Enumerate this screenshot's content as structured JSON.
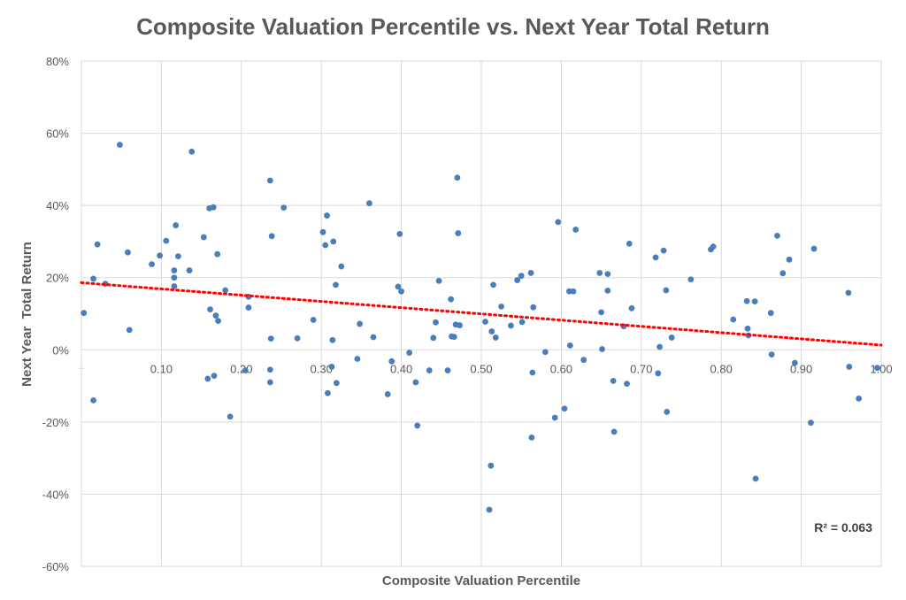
{
  "chart_data": {
    "type": "scatter",
    "title": "Composite Valuation Percentile vs. Next Year Total Return",
    "xlabel": "Composite Valuation Percentile",
    "ylabel": "Next Year  Total Return",
    "xlim": [
      0,
      1.0
    ],
    "ylim": [
      -0.6,
      0.8
    ],
    "x_ticks": [
      0.1,
      0.2,
      0.3,
      0.4,
      0.5,
      0.6,
      0.7,
      0.8,
      0.9,
      1.0
    ],
    "x_tick_labels": [
      "0.10",
      "0.20",
      "0.30",
      "0.40",
      "0.50",
      "0.60",
      "0.70",
      "0.80",
      "0.90",
      "1.00"
    ],
    "y_ticks": [
      -0.6,
      -0.4,
      -0.2,
      0,
      0.2,
      0.4,
      0.6,
      0.8
    ],
    "y_tick_labels": [
      "-60%",
      "-40%",
      "-20%",
      "0%",
      "20%",
      "40%",
      "60%",
      "80%"
    ],
    "gridlines": true,
    "trendline": {
      "type": "linear",
      "x": [
        0.0,
        1.0
      ],
      "y": [
        0.186,
        0.013
      ],
      "color": "#ff0000",
      "style": "dotted"
    },
    "r_squared_label": "R² = 0.063",
    "series": [
      {
        "name": "Observations",
        "color": "#4a7ebb",
        "points": [
          [
            0.003,
            0.102
          ],
          [
            0.015,
            0.197
          ],
          [
            0.015,
            -0.14
          ],
          [
            0.02,
            0.292
          ],
          [
            0.03,
            0.183
          ],
          [
            0.048,
            0.568
          ],
          [
            0.058,
            0.27
          ],
          [
            0.06,
            0.055
          ],
          [
            0.088,
            0.237
          ],
          [
            0.098,
            0.261
          ],
          [
            0.106,
            0.302
          ],
          [
            0.116,
            0.22
          ],
          [
            0.116,
            0.2
          ],
          [
            0.116,
            0.176
          ],
          [
            0.118,
            0.345
          ],
          [
            0.121,
            0.259
          ],
          [
            0.135,
            0.22
          ],
          [
            0.138,
            0.549
          ],
          [
            0.153,
            0.312
          ],
          [
            0.158,
            -0.08
          ],
          [
            0.16,
            0.392
          ],
          [
            0.161,
            0.112
          ],
          [
            0.165,
            0.395
          ],
          [
            0.166,
            -0.072
          ],
          [
            0.168,
            0.095
          ],
          [
            0.17,
            0.265
          ],
          [
            0.171,
            0.08
          ],
          [
            0.18,
            0.165
          ],
          [
            0.186,
            -0.185
          ],
          [
            0.205,
            -0.057
          ],
          [
            0.209,
            0.117
          ],
          [
            0.209,
            0.147
          ],
          [
            0.236,
            0.469
          ],
          [
            0.236,
            -0.055
          ],
          [
            0.236,
            -0.09
          ],
          [
            0.237,
            0.031
          ],
          [
            0.238,
            0.315
          ],
          [
            0.253,
            0.394
          ],
          [
            0.27,
            0.032
          ],
          [
            0.29,
            0.083
          ],
          [
            0.302,
            0.326
          ],
          [
            0.305,
            0.29
          ],
          [
            0.307,
            0.372
          ],
          [
            0.308,
            -0.12
          ],
          [
            0.313,
            -0.047
          ],
          [
            0.314,
            0.027
          ],
          [
            0.315,
            0.3
          ],
          [
            0.318,
            0.18
          ],
          [
            0.319,
            -0.092
          ],
          [
            0.325,
            0.231
          ],
          [
            0.345,
            -0.025
          ],
          [
            0.348,
            0.072
          ],
          [
            0.36,
            0.406
          ],
          [
            0.365,
            0.035
          ],
          [
            0.383,
            -0.123
          ],
          [
            0.388,
            -0.032
          ],
          [
            0.396,
            0.175
          ],
          [
            0.398,
            0.321
          ],
          [
            0.4,
            0.162
          ],
          [
            0.41,
            -0.008
          ],
          [
            0.418,
            -0.09
          ],
          [
            0.42,
            -0.21
          ],
          [
            0.435,
            -0.057
          ],
          [
            0.44,
            0.033
          ],
          [
            0.443,
            0.076
          ],
          [
            0.447,
            0.191
          ],
          [
            0.458,
            -0.057
          ],
          [
            0.462,
            0.14
          ],
          [
            0.463,
            0.037
          ],
          [
            0.466,
            0.036
          ],
          [
            0.468,
            0.07
          ],
          [
            0.47,
            0.477
          ],
          [
            0.471,
            0.323
          ],
          [
            0.473,
            0.068
          ],
          [
            0.505,
            0.078
          ],
          [
            0.51,
            -0.443
          ],
          [
            0.512,
            -0.321
          ],
          [
            0.513,
            0.051
          ],
          [
            0.515,
            0.18
          ],
          [
            0.518,
            0.034
          ],
          [
            0.525,
            0.12
          ],
          [
            0.537,
            0.067
          ],
          [
            0.545,
            0.193
          ],
          [
            0.55,
            0.205
          ],
          [
            0.551,
            0.077
          ],
          [
            0.562,
            0.213
          ],
          [
            0.563,
            -0.243
          ],
          [
            0.564,
            -0.063
          ],
          [
            0.565,
            0.118
          ],
          [
            0.58,
            -0.006
          ],
          [
            0.592,
            -0.188
          ],
          [
            0.596,
            0.354
          ],
          [
            0.604,
            -0.163
          ],
          [
            0.61,
            0.162
          ],
          [
            0.611,
            0.012
          ],
          [
            0.615,
            0.162
          ],
          [
            0.618,
            0.333
          ],
          [
            0.628,
            -0.028
          ],
          [
            0.648,
            0.213
          ],
          [
            0.65,
            0.104
          ],
          [
            0.651,
            0.002
          ],
          [
            0.658,
            0.21
          ],
          [
            0.658,
            0.164
          ],
          [
            0.665,
            -0.086
          ],
          [
            0.666,
            -0.227
          ],
          [
            0.678,
            0.065
          ],
          [
            0.682,
            -0.094
          ],
          [
            0.685,
            0.294
          ],
          [
            0.688,
            0.115
          ],
          [
            0.718,
            0.256
          ],
          [
            0.721,
            -0.065
          ],
          [
            0.723,
            0.008
          ],
          [
            0.728,
            0.275
          ],
          [
            0.731,
            0.165
          ],
          [
            0.732,
            -0.172
          ],
          [
            0.738,
            0.034
          ],
          [
            0.762,
            0.195
          ],
          [
            0.787,
            0.278
          ],
          [
            0.79,
            0.286
          ],
          [
            0.815,
            0.084
          ],
          [
            0.832,
            0.135
          ],
          [
            0.833,
            0.059
          ],
          [
            0.834,
            0.04
          ],
          [
            0.842,
            0.134
          ],
          [
            0.843,
            -0.357
          ],
          [
            0.862,
            0.102
          ],
          [
            0.863,
            -0.013
          ],
          [
            0.87,
            0.316
          ],
          [
            0.877,
            0.212
          ],
          [
            0.885,
            0.25
          ],
          [
            0.892,
            -0.036
          ],
          [
            0.912,
            -0.202
          ],
          [
            0.916,
            0.28
          ],
          [
            0.959,
            0.158
          ],
          [
            0.96,
            -0.047
          ],
          [
            0.972,
            -0.135
          ],
          [
            0.995,
            -0.05
          ]
        ]
      }
    ]
  }
}
